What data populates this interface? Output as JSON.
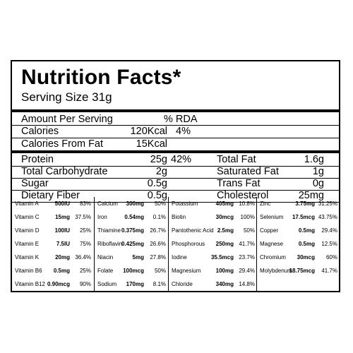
{
  "title": "Nutrition Facts*",
  "serving_size": "Serving Size 31g",
  "header": {
    "amount_per_serving": "Amount Per Serving",
    "rda": "% RDA"
  },
  "calories": {
    "label": "Calories",
    "value": "120Kcal",
    "pct": "4%"
  },
  "calories_fat": {
    "label": "Calories From Fat",
    "value": "15Kcal"
  },
  "macros": [
    {
      "label": "Protein",
      "value": "25g",
      "pct": "42%",
      "label2": "Total Fat",
      "value2": "1.6g"
    },
    {
      "label": "Total Carbohydrate",
      "value": "2g",
      "pct": "",
      "label2": "Saturated Fat",
      "value2": "1g"
    },
    {
      "label": "Sugar",
      "value": "0.5g",
      "pct": "",
      "label2": "Trans Fat",
      "value2": "0g"
    },
    {
      "label": "Dietary Fiber",
      "value": "0.5g",
      "pct": "",
      "label2": "Cholesterol",
      "value2": "25mg"
    }
  ],
  "vitamins": [
    [
      {
        "name": "Vitamin A",
        "amount": "500IU",
        "pct": "83%"
      },
      {
        "name": "Vitamin C",
        "amount": "15mg",
        "pct": "37.5%"
      },
      {
        "name": "Vitamin D",
        "amount": "100IU",
        "pct": "25%"
      },
      {
        "name": "Vitamin E",
        "amount": "7.5IU",
        "pct": "75%"
      },
      {
        "name": "Vitamin K",
        "amount": "20mg",
        "pct": "36.4%"
      },
      {
        "name": "Vitamin B6",
        "amount": "0.5mg",
        "pct": "25%"
      },
      {
        "name": "Vitamin B12",
        "amount": "0.90mcg",
        "pct": "90%"
      }
    ],
    [
      {
        "name": "Calcium",
        "amount": "300mg",
        "pct": "50%"
      },
      {
        "name": "Iron",
        "amount": "0.54mg",
        "pct": "0.1%"
      },
      {
        "name": "Thiamine",
        "amount": "0.375mg",
        "pct": "26.7%"
      },
      {
        "name": "Riboflavin",
        "amount": "0.425mg",
        "pct": "26.6%"
      },
      {
        "name": "Niacin",
        "amount": "5mg",
        "pct": "27.8%"
      },
      {
        "name": "Folate",
        "amount": "100mcg",
        "pct": "50%"
      },
      {
        "name": "Sodium",
        "amount": "170mg",
        "pct": "8.1%"
      }
    ],
    [
      {
        "name": "Potassium",
        "amount": "405mg",
        "pct": "10.8%"
      },
      {
        "name": "Biotin",
        "amount": "30mcg",
        "pct": "100%"
      },
      {
        "name": "Pantothenic Acid",
        "amount": "2.5mg",
        "pct": "50%"
      },
      {
        "name": "Phosphorous",
        "amount": "250mg",
        "pct": "41.7%"
      },
      {
        "name": "Iodine",
        "amount": "35.5mcg",
        "pct": "23.7%"
      },
      {
        "name": "Magnesium",
        "amount": "100mg",
        "pct": "29.4%"
      },
      {
        "name": "Chloride",
        "amount": "340mg",
        "pct": "14.8%"
      }
    ],
    [
      {
        "name": "Zinc",
        "amount": "3.75mg",
        "pct": "31.25%"
      },
      {
        "name": "Selenium",
        "amount": "17.5mcg",
        "pct": "43.75%"
      },
      {
        "name": "Copper",
        "amount": "0.5mg",
        "pct": "29.4%"
      },
      {
        "name": "Magnese",
        "amount": "0.5mg",
        "pct": "12.5%"
      },
      {
        "name": "Chromium",
        "amount": "30mcg",
        "pct": "60%"
      },
      {
        "name": "Molybdenum",
        "amount": "18.75mcg",
        "pct": "41.7%"
      }
    ]
  ]
}
